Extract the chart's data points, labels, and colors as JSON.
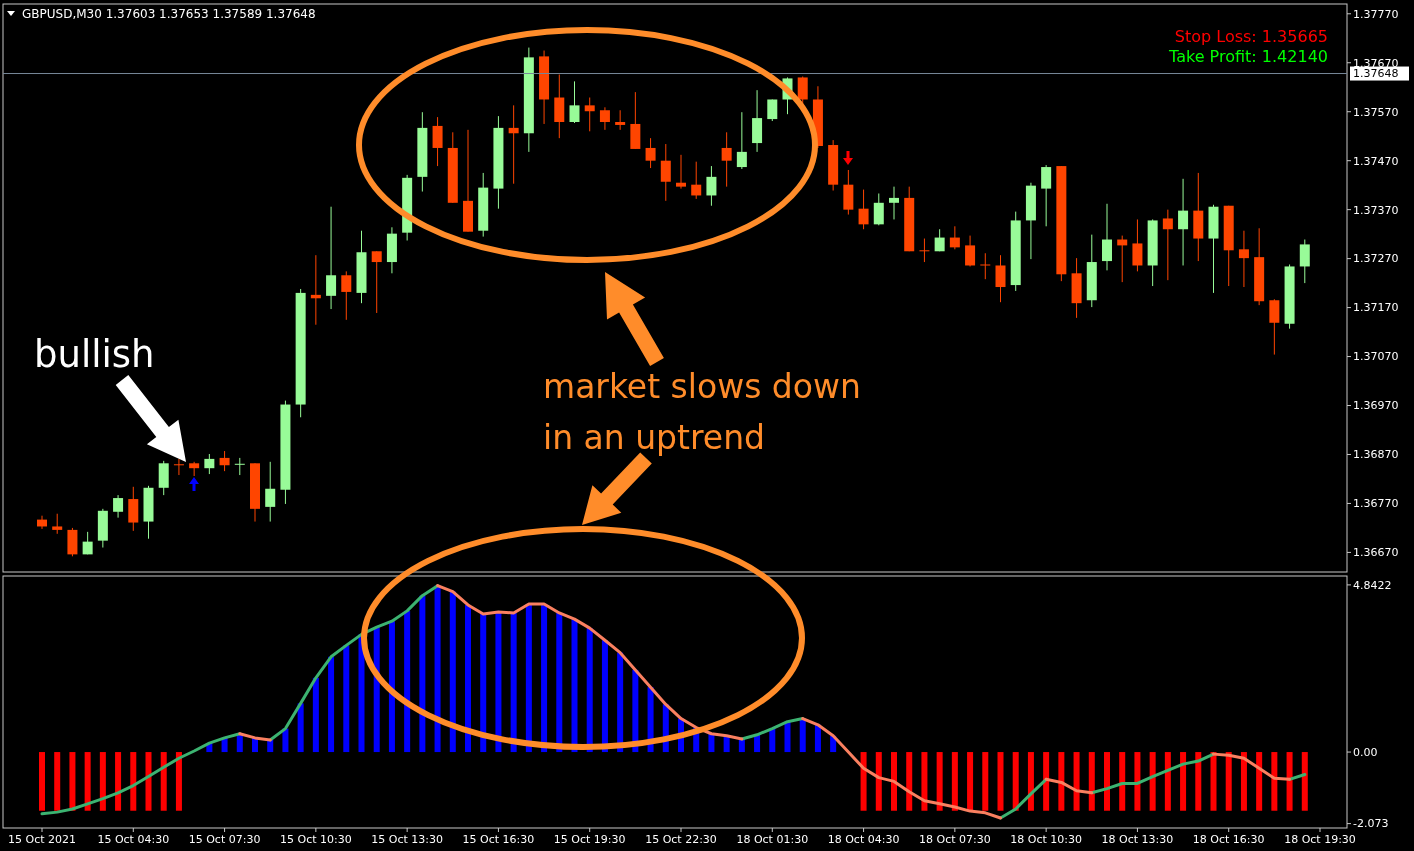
{
  "chart_data": [
    {
      "type": "candlestick",
      "annotations": [
        "GBPUSD,M30  1.37603 1.37653 1.37589 1.37648",
        "Stop Loss: 1.35665",
        "Take Profit: 1.42140",
        "bullish",
        "market slows down in an uptrend"
      ],
      "categories": [
        null,
        null,
        null,
        null,
        null,
        null,
        null,
        null,
        null,
        null,
        null,
        null,
        null,
        null,
        null,
        null,
        null,
        null,
        null,
        null,
        null,
        null,
        null,
        null,
        null,
        null,
        null,
        null,
        null,
        null,
        null,
        null,
        null,
        null,
        null,
        null,
        null,
        null,
        null,
        null,
        null,
        null,
        null,
        null,
        null,
        null,
        null,
        null,
        null,
        null,
        null,
        null,
        null,
        null,
        null,
        null,
        null,
        null,
        null,
        null,
        null,
        null,
        null,
        null,
        null,
        null,
        null,
        null,
        null,
        null,
        null,
        null,
        null,
        null,
        null,
        null,
        null,
        null,
        null,
        null,
        null,
        null,
        null,
        null,
        null
      ],
      "ohlc": [
        [
          1.36737,
          1.36745,
          1.36718,
          1.36723
        ],
        [
          1.36723,
          1.36749,
          1.36708,
          1.36716
        ],
        [
          1.36716,
          1.3672,
          1.36662,
          1.36666
        ],
        [
          1.36666,
          1.36712,
          1.36666,
          1.36692
        ],
        [
          1.36694,
          1.36759,
          1.3668,
          1.36755
        ],
        [
          1.36753,
          1.36787,
          1.36741,
          1.36781
        ],
        [
          1.36779,
          1.36804,
          1.36714,
          1.36731
        ],
        [
          1.36733,
          1.36806,
          1.36698,
          1.36802
        ],
        [
          1.36802,
          1.36857,
          1.36787,
          1.36852
        ],
        [
          1.3685,
          1.36861,
          1.36828,
          1.36848
        ],
        [
          1.36852,
          1.36855,
          1.36826,
          1.36842
        ],
        [
          1.36842,
          1.36871,
          1.3683,
          1.36861
        ],
        [
          1.36863,
          1.36877,
          1.36836,
          1.36848
        ],
        [
          1.3685,
          1.36863,
          1.36828,
          1.36851
        ],
        [
          1.36852,
          1.36852,
          1.36733,
          1.36759
        ],
        [
          1.36763,
          1.36855,
          1.36733,
          1.368
        ],
        [
          1.36798,
          1.3698,
          1.36769,
          1.36972
        ],
        [
          1.36972,
          1.37208,
          1.36946,
          1.372
        ],
        [
          1.37196,
          1.37277,
          1.37135,
          1.37189
        ],
        [
          1.37194,
          1.37376,
          1.37167,
          1.37236
        ],
        [
          1.37236,
          1.37244,
          1.37145,
          1.37202
        ],
        [
          1.372,
          1.37327,
          1.37179,
          1.37283
        ],
        [
          1.37285,
          1.37285,
          1.37159,
          1.37263
        ],
        [
          1.37263,
          1.37334,
          1.3724,
          1.37321
        ],
        [
          1.37323,
          1.37441,
          1.37307,
          1.37435
        ],
        [
          1.37437,
          1.37569,
          1.37407,
          1.37537
        ],
        [
          1.37541,
          1.37559,
          1.37459,
          1.37496
        ],
        [
          1.37496,
          1.37528,
          1.37384,
          1.37384
        ],
        [
          1.37388,
          1.37533,
          1.37325,
          1.37325
        ],
        [
          1.37327,
          1.37445,
          1.37315,
          1.37415
        ],
        [
          1.37413,
          1.37561,
          1.37372,
          1.37537
        ],
        [
          1.37537,
          1.37583,
          1.37423,
          1.37526
        ],
        [
          1.37526,
          1.37701,
          1.37488,
          1.37681
        ],
        [
          1.37683,
          1.37695,
          1.37545,
          1.37595
        ],
        [
          1.37599,
          1.37646,
          1.37516,
          1.37549
        ],
        [
          1.37549,
          1.37632,
          1.37547,
          1.37583
        ],
        [
          1.37583,
          1.37599,
          1.3753,
          1.37571
        ],
        [
          1.37573,
          1.37579,
          1.37533,
          1.37549
        ],
        [
          1.37549,
          1.37573,
          1.37533,
          1.37543
        ],
        [
          1.37545,
          1.3761,
          1.37494,
          1.37494
        ],
        [
          1.37496,
          1.37516,
          1.37455,
          1.3747
        ],
        [
          1.3747,
          1.37504,
          1.37388,
          1.37427
        ],
        [
          1.37425,
          1.37482,
          1.37413,
          1.37417
        ],
        [
          1.37421,
          1.37468,
          1.37392,
          1.37399
        ],
        [
          1.37399,
          1.37459,
          1.37378,
          1.37437
        ],
        [
          1.37496,
          1.37528,
          1.37417,
          1.3747
        ],
        [
          1.37457,
          1.37569,
          1.37453,
          1.37488
        ],
        [
          1.37506,
          1.37614,
          1.37488,
          1.37557
        ],
        [
          1.37555,
          1.37595,
          1.37551,
          1.37595
        ],
        [
          1.37595,
          1.3764,
          1.37565,
          1.37638
        ],
        [
          1.3764,
          1.37642,
          1.37583,
          1.37595
        ],
        [
          1.37595,
          1.37622,
          1.37496,
          1.375
        ],
        [
          1.37502,
          1.37512,
          1.37409,
          1.37421
        ],
        [
          1.37421,
          1.37451,
          1.3736,
          1.3737
        ],
        [
          1.37372,
          1.37411,
          1.3733,
          1.3734
        ],
        [
          1.3734,
          1.37403,
          1.37338,
          1.37384
        ],
        [
          1.37384,
          1.37417,
          1.3735,
          1.37394
        ],
        [
          1.37394,
          1.37417,
          1.37285,
          1.37285
        ],
        [
          1.37287,
          1.37311,
          1.37263,
          1.37286
        ],
        [
          1.37285,
          1.3733,
          1.37285,
          1.37313
        ],
        [
          1.37313,
          1.37336,
          1.37289,
          1.37293
        ],
        [
          1.37297,
          1.37317,
          1.37254,
          1.37256
        ],
        [
          1.37258,
          1.37281,
          1.37228,
          1.37257
        ],
        [
          1.37256,
          1.37277,
          1.37181,
          1.37212
        ],
        [
          1.37216,
          1.37366,
          1.37204,
          1.37348
        ],
        [
          1.37348,
          1.37425,
          1.37269,
          1.37419
        ],
        [
          1.37413,
          1.37461,
          1.37336,
          1.37457
        ],
        [
          1.37459,
          1.37459,
          1.37224,
          1.37238
        ],
        [
          1.3724,
          1.37271,
          1.37149,
          1.37179
        ],
        [
          1.37185,
          1.37319,
          1.37171,
          1.37263
        ],
        [
          1.37265,
          1.37382,
          1.37246,
          1.37309
        ],
        [
          1.37309,
          1.37317,
          1.37222,
          1.37297
        ],
        [
          1.37301,
          1.3735,
          1.37244,
          1.37256
        ],
        [
          1.37256,
          1.3735,
          1.37214,
          1.37348
        ],
        [
          1.37352,
          1.3737,
          1.37226,
          1.3733
        ],
        [
          1.3733,
          1.37433,
          1.37256,
          1.37368
        ],
        [
          1.37368,
          1.37445,
          1.37265,
          1.37311
        ],
        [
          1.37311,
          1.3738,
          1.372,
          1.37376
        ],
        [
          1.37378,
          1.37378,
          1.37214,
          1.37287
        ],
        [
          1.37289,
          1.37327,
          1.37212,
          1.37271
        ],
        [
          1.37273,
          1.37332,
          1.37175,
          1.37183
        ],
        [
          1.37185,
          1.37187,
          1.37074,
          1.37139
        ],
        [
          1.37137,
          1.37258,
          1.37127,
          1.37254
        ],
        [
          1.37254,
          1.37309,
          1.3722,
          1.37299
        ],
        null
      ],
      "colors": [
        "#ff4500",
        "#ff4500",
        "#ff4500",
        "#98fb98",
        "#98fb98",
        "#98fb98",
        "#ff4500",
        "#98fb98",
        "#98fb98",
        "#ff4500",
        "#ff4500",
        "#98fb98",
        "#ff4500",
        "#98fb98",
        "#ff4500",
        "#98fb98",
        "#98fb98",
        "#98fb98",
        "#ff4500",
        "#98fb98",
        "#ff4500",
        "#98fb98",
        "#ff4500",
        "#98fb98",
        "#98fb98",
        "#98fb98",
        "#ff4500",
        "#ff4500",
        "#ff4500",
        "#98fb98",
        "#98fb98",
        "#ff4500",
        "#98fb98",
        "#ff4500",
        "#ff4500",
        "#98fb98",
        "#ff4500",
        "#ff4500",
        "#ff4500",
        "#ff4500",
        "#ff4500",
        "#ff4500",
        "#ff4500",
        "#ff4500",
        "#98fb98",
        "#ff4500",
        "#98fb98",
        "#98fb98",
        "#98fb98",
        "#98fb98",
        "#ff4500",
        "#ff4500",
        "#ff4500",
        "#ff4500",
        "#ff4500",
        "#98fb98",
        "#98fb98",
        "#ff4500",
        "#ff4500",
        "#98fb98",
        "#ff4500",
        "#ff4500",
        "#ff4500",
        "#ff4500",
        "#98fb98",
        "#98fb98",
        "#98fb98",
        "#ff4500",
        "#ff4500",
        "#98fb98",
        "#98fb98",
        "#ff4500",
        "#ff4500",
        "#98fb98",
        "#ff4500",
        "#98fb98",
        "#ff4500",
        "#98fb98",
        "#ff4500",
        "#ff4500",
        "#ff4500",
        "#ff4500",
        "#98fb98",
        "#98fb98",
        null
      ],
      "ylim": [
        1.3663,
        1.3779
      ],
      "yticks": [
        {
          "value": 1.3667,
          "label": "1.36670"
        },
        {
          "value": 1.3677,
          "label": "1.36770"
        },
        {
          "value": 1.3687,
          "label": "1.36870"
        },
        {
          "value": 1.3697,
          "label": "1.36970"
        },
        {
          "value": 1.3707,
          "label": "1.37070"
        },
        {
          "value": 1.3717,
          "label": "1.37170"
        },
        {
          "value": 1.3727,
          "label": "1.37270"
        },
        {
          "value": 1.3737,
          "label": "1.37370"
        },
        {
          "value": 1.3747,
          "label": "1.37470"
        },
        {
          "value": 1.3757,
          "label": "1.37570"
        },
        {
          "value": 1.3767,
          "label": "1.37670"
        },
        {
          "value": 1.3777,
          "label": "1.37770"
        }
      ],
      "ref_lines": [
        {
          "axis": "y",
          "value": 1.37648,
          "label": "1.37648",
          "color": "#778899"
        }
      ],
      "tick_labels": "y"
    },
    {
      "type": "bar",
      "categories": [
        "15 Oct 2021",
        null,
        null,
        null,
        null,
        null,
        "15 Oct 04:30",
        null,
        null,
        null,
        null,
        null,
        "15 Oct 07:30",
        null,
        null,
        null,
        null,
        null,
        "15 Oct 10:30",
        null,
        null,
        null,
        null,
        null,
        "15 Oct 13:30",
        null,
        null,
        null,
        null,
        null,
        "15 Oct 16:30",
        null,
        null,
        null,
        null,
        null,
        "15 Oct 19:30",
        null,
        null,
        null,
        null,
        null,
        "15 Oct 22:30",
        null,
        null,
        null,
        null,
        null,
        "18 Oct 01:30",
        null,
        null,
        null,
        null,
        null,
        "18 Oct 04:30",
        null,
        null,
        null,
        null,
        null,
        "18 Oct 07:30",
        null,
        null,
        null,
        null,
        null,
        "18 Oct 10:30",
        null,
        null,
        null,
        null,
        null,
        "18 Oct 13:30",
        null,
        null,
        null,
        null,
        null,
        "18 Oct 16:30",
        null,
        null,
        null,
        null,
        null,
        "18 Oct 19:30"
      ],
      "series": [
        {
          "type": "bar",
          "values": [
            -1.7,
            -1.7,
            -1.7,
            -1.7,
            -1.7,
            -1.7,
            -1.7,
            -1.7,
            -1.7,
            -1.7,
            null,
            0.26,
            0.41,
            0.53,
            0.41,
            0.35,
            0.68,
            1.41,
            2.15,
            2.76,
            3.09,
            3.41,
            3.62,
            3.79,
            4.09,
            4.53,
            4.82,
            4.65,
            4.26,
            4.0,
            4.06,
            4.03,
            4.29,
            4.29,
            4.03,
            3.85,
            3.59,
            3.24,
            2.88,
            2.38,
            1.88,
            1.38,
            0.97,
            0.71,
            0.53,
            0.47,
            0.38,
            0.5,
            0.68,
            0.88,
            0.97,
            0.79,
            0.47,
            null,
            -1.7,
            -1.7,
            -1.7,
            -1.7,
            -1.7,
            -1.7,
            -1.7,
            -1.7,
            -1.7,
            -1.7,
            -1.7,
            -1.7,
            -1.7,
            -1.7,
            -1.7,
            -1.7,
            -1.7,
            -1.7,
            -1.7,
            -1.7,
            -1.7,
            -1.7,
            -1.7,
            -1.7,
            -1.7,
            -1.7,
            -1.7,
            -1.7,
            -1.7,
            -1.7,
            null
          ],
          "colors": [
            "#ff0000",
            "#ff0000",
            "#ff0000",
            "#ff0000",
            "#ff0000",
            "#ff0000",
            "#ff0000",
            "#ff0000",
            "#ff0000",
            "#ff0000",
            null,
            "#0000ff",
            "#0000ff",
            "#0000ff",
            "#0000ff",
            "#0000ff",
            "#0000ff",
            "#0000ff",
            "#0000ff",
            "#0000ff",
            "#0000ff",
            "#0000ff",
            "#0000ff",
            "#0000ff",
            "#0000ff",
            "#0000ff",
            "#0000ff",
            "#0000ff",
            "#0000ff",
            "#0000ff",
            "#0000ff",
            "#0000ff",
            "#0000ff",
            "#0000ff",
            "#0000ff",
            "#0000ff",
            "#0000ff",
            "#0000ff",
            "#0000ff",
            "#0000ff",
            "#0000ff",
            "#0000ff",
            "#0000ff",
            "#0000ff",
            "#0000ff",
            "#0000ff",
            "#0000ff",
            "#0000ff",
            "#0000ff",
            "#0000ff",
            "#0000ff",
            "#0000ff",
            "#0000ff",
            null,
            "#ff0000",
            "#ff0000",
            "#ff0000",
            "#ff0000",
            "#ff0000",
            "#ff0000",
            "#ff0000",
            "#ff0000",
            "#ff0000",
            "#ff0000",
            "#ff0000",
            "#ff0000",
            "#ff0000",
            "#ff0000",
            "#ff0000",
            "#ff0000",
            "#ff0000",
            "#ff0000",
            "#ff0000",
            "#ff0000",
            "#ff0000",
            "#ff0000",
            "#ff0000",
            "#ff0000",
            "#ff0000",
            "#ff0000",
            "#ff0000",
            "#ff0000",
            "#ff0000",
            "#ff0000",
            null
          ]
        },
        {
          "type": "line",
          "color": "#3cb371",
          "values": [
            -1.79,
            -1.74,
            -1.65,
            -1.5,
            -1.35,
            -1.18,
            -0.97,
            -0.71,
            -0.44,
            -0.18,
            0.03,
            0.26,
            0.41,
            0.53,
            null,
            0.35,
            0.68,
            1.41,
            2.15,
            2.76,
            3.09,
            3.41,
            3.62,
            3.79,
            4.09,
            4.53,
            4.82,
            null,
            null,
            null,
            null,
            null,
            null,
            null,
            null,
            null,
            null,
            null,
            null,
            null,
            null,
            null,
            null,
            null,
            null,
            null,
            0.38,
            0.5,
            0.68,
            0.88,
            0.97,
            null,
            null,
            null,
            null,
            null,
            null,
            null,
            null,
            null,
            null,
            null,
            null,
            -1.91,
            -1.65,
            -1.21,
            -0.79,
            null,
            null,
            -1.18,
            -1.06,
            -0.91,
            -0.91,
            -0.71,
            -0.53,
            -0.35,
            -0.26,
            -0.06,
            null,
            null,
            null,
            null,
            -0.79,
            -0.65,
            null
          ]
        },
        {
          "type": "line",
          "color": "#fa8060",
          "values": [
            null,
            null,
            null,
            null,
            null,
            null,
            null,
            null,
            null,
            null,
            null,
            null,
            null,
            0.53,
            0.41,
            0.35,
            null,
            null,
            null,
            null,
            null,
            null,
            null,
            null,
            null,
            null,
            4.82,
            4.65,
            4.26,
            4.0,
            4.06,
            4.03,
            4.29,
            4.29,
            4.03,
            3.85,
            3.59,
            3.24,
            2.88,
            2.38,
            1.88,
            1.38,
            0.97,
            0.71,
            0.53,
            0.47,
            0.38,
            null,
            null,
            null,
            0.97,
            0.79,
            0.47,
            0.0,
            -0.47,
            -0.74,
            -0.85,
            -1.15,
            -1.41,
            -1.5,
            -1.59,
            -1.71,
            -1.76,
            -1.91,
            null,
            null,
            -0.79,
            -0.88,
            -1.12,
            -1.18,
            null,
            null,
            null,
            null,
            null,
            null,
            null,
            -0.06,
            -0.09,
            -0.18,
            -0.47,
            -0.76,
            -0.79,
            null,
            null
          ]
        }
      ],
      "ylim": [
        -2.2,
        5.1
      ],
      "yticks": [
        4.8422,
        {
          "value": 0,
          "label": "0.00"
        },
        -2.073
      ]
    }
  ]
}
